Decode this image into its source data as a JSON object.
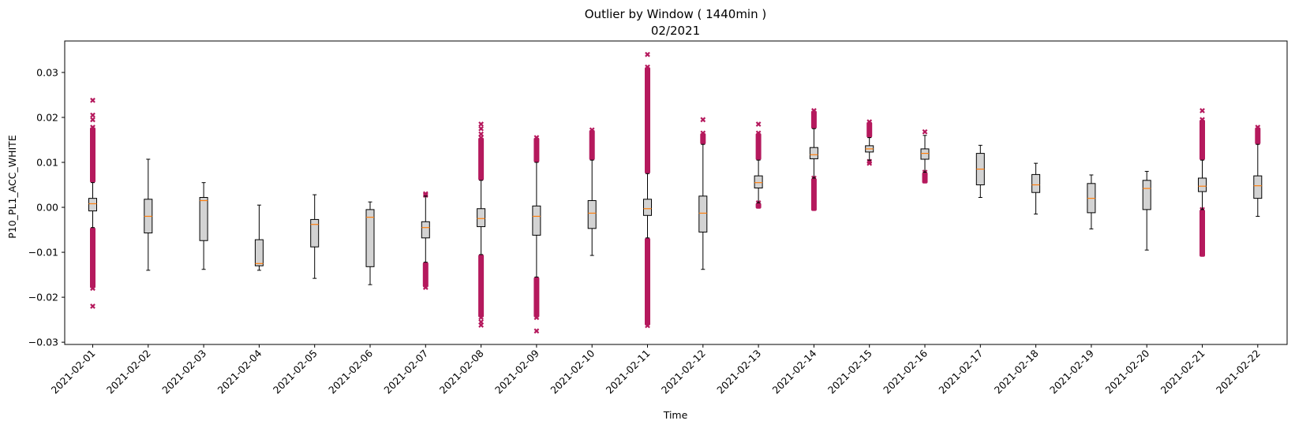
{
  "chart_data": {
    "type": "box",
    "title": "Outlier by Window ( 1440min )",
    "subtitle": "02/2021",
    "xlabel": "Time",
    "ylabel": "P10_PL1_ACC_WHITE",
    "ylim": [
      -0.0305,
      0.037
    ],
    "yticks": [
      -0.03,
      -0.02,
      -0.01,
      0.0,
      0.01,
      0.02,
      0.03
    ],
    "ytick_labels": [
      "−0.03",
      "−0.02",
      "−0.01",
      "0.00",
      "0.01",
      "0.02",
      "0.03"
    ],
    "box_color": "#d3d3d3",
    "median_color": "#ff7f0e",
    "outlier_color": "#b5195d",
    "categories": [
      "2021-02-01",
      "2021-02-02",
      "2021-02-03",
      "2021-02-04",
      "2021-02-05",
      "2021-02-06",
      "2021-02-07",
      "2021-02-08",
      "2021-02-09",
      "2021-02-10",
      "2021-02-11",
      "2021-02-12",
      "2021-02-13",
      "2021-02-14",
      "2021-02-15",
      "2021-02-16",
      "2021-02-17",
      "2021-02-18",
      "2021-02-19",
      "2021-02-20",
      "2021-02-21",
      "2021-02-22"
    ],
    "boxes": [
      {
        "whislo": -0.0045,
        "q1": -0.0008,
        "med": 0.0008,
        "q3": 0.002,
        "whishi": 0.0055,
        "outliers_low": [
          -0.0045,
          -0.018
        ],
        "outliers_high": [
          0.0055,
          0.0178
        ],
        "fliers": [
          -0.022,
          0.0195,
          0.0205,
          0.0238
        ]
      },
      {
        "whislo": -0.014,
        "q1": -0.0057,
        "med": -0.002,
        "q3": 0.0018,
        "whishi": 0.0107,
        "outliers_low": null,
        "outliers_high": null,
        "fliers": []
      },
      {
        "whislo": -0.0138,
        "q1": -0.0074,
        "med": 0.0015,
        "q3": 0.0022,
        "whishi": 0.0055,
        "outliers_low": null,
        "outliers_high": null,
        "fliers": []
      },
      {
        "whislo": -0.014,
        "q1": -0.013,
        "med": -0.0125,
        "q3": -0.0072,
        "whishi": 0.0005,
        "outliers_low": null,
        "outliers_high": null,
        "fliers": []
      },
      {
        "whislo": -0.0158,
        "q1": -0.0088,
        "med": -0.0038,
        "q3": -0.0027,
        "whishi": 0.0028,
        "outliers_low": null,
        "outliers_high": null,
        "fliers": []
      },
      {
        "whislo": -0.0172,
        "q1": -0.0132,
        "med": -0.0022,
        "q3": -0.0005,
        "whishi": 0.0012,
        "outliers_low": null,
        "outliers_high": null,
        "fliers": []
      },
      {
        "whislo": -0.0122,
        "q1": -0.0068,
        "med": -0.0045,
        "q3": -0.0032,
        "whishi": 0.0025,
        "outliers_low": [
          -0.0122,
          -0.0178
        ],
        "outliers_high": null,
        "fliers": [
          0.0027,
          0.003
        ]
      },
      {
        "whislo": -0.0105,
        "q1": -0.0043,
        "med": -0.0025,
        "q3": -0.0003,
        "whishi": 0.006,
        "outliers_low": [
          -0.0105,
          -0.0245
        ],
        "outliers_high": [
          0.006,
          0.0155
        ],
        "fliers": [
          -0.0262,
          -0.0255,
          0.0163,
          0.0175,
          0.0185
        ]
      },
      {
        "whislo": -0.0155,
        "q1": -0.0062,
        "med": -0.002,
        "q3": 0.0003,
        "whishi": 0.01,
        "outliers_low": [
          -0.0155,
          -0.0245
        ],
        "outliers_high": [
          0.01,
          0.0155
        ],
        "fliers": [
          -0.0275
        ]
      },
      {
        "whislo": -0.0107,
        "q1": -0.0047,
        "med": -0.0013,
        "q3": 0.0015,
        "whishi": 0.0105,
        "outliers_low": null,
        "outliers_high": [
          0.0105,
          0.0172
        ],
        "fliers": []
      },
      {
        "whislo": -0.0068,
        "q1": -0.0018,
        "med": -0.0003,
        "q3": 0.0018,
        "whishi": 0.0075,
        "outliers_low": [
          -0.0068,
          -0.0263
        ],
        "outliers_high": [
          0.0075,
          0.0312
        ],
        "fliers": [
          0.034
        ]
      },
      {
        "whislo": -0.0138,
        "q1": -0.0055,
        "med": -0.0013,
        "q3": 0.0025,
        "whishi": 0.014,
        "outliers_low": null,
        "outliers_high": [
          0.014,
          0.0165
        ],
        "fliers": [
          0.0195
        ]
      },
      {
        "whislo": 0.001,
        "q1": 0.0043,
        "med": 0.0055,
        "q3": 0.007,
        "whishi": 0.0105,
        "outliers_low": [
          -0.0003,
          0.001
        ],
        "outliers_high": [
          0.0105,
          0.0165
        ],
        "fliers": [
          0.0185
        ]
      },
      {
        "whislo": 0.0065,
        "q1": 0.0108,
        "med": 0.0117,
        "q3": 0.0133,
        "whishi": 0.0175,
        "outliers_low": [
          -0.0008,
          0.0065
        ],
        "outliers_high": [
          0.0175,
          0.0215
        ],
        "fliers": []
      },
      {
        "whislo": 0.0105,
        "q1": 0.0123,
        "med": 0.013,
        "q3": 0.0137,
        "whishi": 0.0155,
        "outliers_low": null,
        "outliers_high": [
          0.0155,
          0.019
        ],
        "fliers": [
          0.0098,
          0.0102
        ]
      },
      {
        "whislo": 0.0078,
        "q1": 0.0107,
        "med": 0.012,
        "q3": 0.013,
        "whishi": 0.016,
        "outliers_low": [
          0.0053,
          0.0078
        ],
        "outliers_high": null,
        "fliers": [
          0.0168
        ]
      },
      {
        "whislo": 0.0022,
        "q1": 0.005,
        "med": 0.0085,
        "q3": 0.012,
        "whishi": 0.0138,
        "outliers_low": null,
        "outliers_high": null,
        "fliers": []
      },
      {
        "whislo": -0.0015,
        "q1": 0.0033,
        "med": 0.005,
        "q3": 0.0073,
        "whishi": 0.0098,
        "outliers_low": null,
        "outliers_high": null,
        "fliers": []
      },
      {
        "whislo": -0.0048,
        "q1": -0.0012,
        "med": 0.002,
        "q3": 0.0053,
        "whishi": 0.0072,
        "outliers_low": null,
        "outliers_high": null,
        "fliers": []
      },
      {
        "whislo": -0.0095,
        "q1": -0.0005,
        "med": 0.0042,
        "q3": 0.006,
        "whishi": 0.008,
        "outliers_low": null,
        "outliers_high": null,
        "fliers": []
      },
      {
        "whislo": -0.0005,
        "q1": 0.0035,
        "med": 0.0047,
        "q3": 0.0065,
        "whishi": 0.0105,
        "outliers_low": [
          -0.011,
          -0.0005
        ],
        "outliers_high": [
          0.0105,
          0.0195
        ],
        "fliers": [
          0.0215
        ]
      },
      {
        "whislo": -0.002,
        "q1": 0.002,
        "med": 0.0048,
        "q3": 0.007,
        "whishi": 0.014,
        "outliers_low": null,
        "outliers_high": [
          0.014,
          0.0178
        ],
        "fliers": []
      }
    ]
  }
}
